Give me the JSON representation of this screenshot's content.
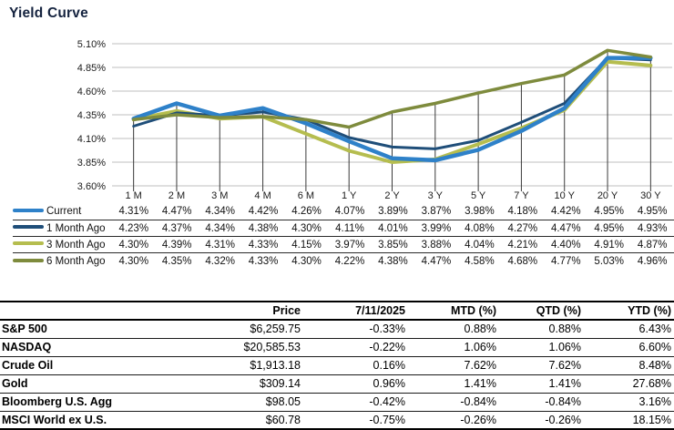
{
  "title": "Yield Curve",
  "chart_data": {
    "type": "line",
    "title": "Yield Curve",
    "categories": [
      "1 M",
      "2 M",
      "3 M",
      "4 M",
      "6 M",
      "1 Y",
      "2 Y",
      "3 Y",
      "5 Y",
      "7 Y",
      "10 Y",
      "20 Y",
      "30 Y"
    ],
    "series": [
      {
        "name": "Current",
        "color": "#2e81c9",
        "values": [
          4.31,
          4.47,
          4.34,
          4.42,
          4.26,
          4.07,
          3.89,
          3.87,
          3.98,
          4.18,
          4.42,
          4.95,
          4.95
        ]
      },
      {
        "name": "1 Month Ago",
        "color": "#1f4e79",
        "values": [
          4.23,
          4.37,
          4.34,
          4.38,
          4.3,
          4.11,
          4.01,
          3.99,
          4.08,
          4.27,
          4.47,
          4.95,
          4.93
        ]
      },
      {
        "name": "3 Month Ago",
        "color": "#b5bd4f",
        "values": [
          4.3,
          4.39,
          4.31,
          4.33,
          4.15,
          3.97,
          3.85,
          3.88,
          4.04,
          4.21,
          4.4,
          4.91,
          4.87
        ]
      },
      {
        "name": "6 Month Ago",
        "color": "#7e8b3d",
        "values": [
          4.3,
          4.35,
          4.32,
          4.33,
          4.3,
          4.22,
          4.38,
          4.47,
          4.58,
          4.68,
          4.77,
          5.03,
          4.96
        ]
      }
    ],
    "ylim": [
      3.6,
      5.1
    ],
    "yticks": [
      "5.10%",
      "4.85%",
      "4.60%",
      "4.35%",
      "4.10%",
      "3.85%",
      "3.60%"
    ],
    "grid": true,
    "drop_lines": true,
    "grid_color": "#bfbfbf",
    "axis_text_color": "#1a1a1a",
    "drop_line_color": "#3a3a3a",
    "legend_position": "bottom-table"
  },
  "table": {
    "headers": [
      "",
      "Price",
      "7/11/2025",
      "MTD (%)",
      "QTD (%)",
      "YTD (%)"
    ],
    "rows": [
      {
        "label": "S&P 500",
        "values": [
          "$6,259.75",
          "-0.33%",
          "0.88%",
          "0.88%",
          "6.43%"
        ]
      },
      {
        "label": "NASDAQ",
        "values": [
          "$20,585.53",
          "-0.22%",
          "1.06%",
          "1.06%",
          "6.60%"
        ]
      },
      {
        "label": "Crude Oil",
        "values": [
          "$1,913.18",
          "0.16%",
          "7.62%",
          "7.62%",
          "8.48%"
        ]
      },
      {
        "label": "Gold",
        "values": [
          "$309.14",
          "0.96%",
          "1.41%",
          "1.41%",
          "27.68%"
        ]
      },
      {
        "label": "Bloomberg U.S. Agg",
        "values": [
          "$98.05",
          "-0.42%",
          "-0.84%",
          "-0.84%",
          "3.16%"
        ]
      },
      {
        "label": "MSCI World ex U.S.",
        "values": [
          "$60.78",
          "-0.75%",
          "-0.26%",
          "-0.26%",
          "18.15%"
        ]
      }
    ]
  }
}
